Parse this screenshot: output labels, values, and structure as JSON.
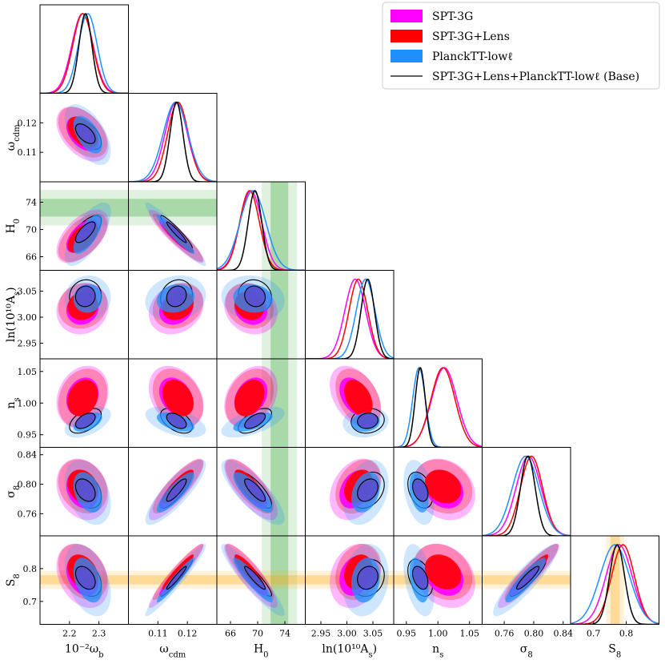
{
  "chart_data": {
    "type": "scatter",
    "title": "",
    "legend": {
      "placement": "top-right",
      "entries": [
        {
          "name": "SPT-3G",
          "color": "#ff00ff",
          "style": "patch"
        },
        {
          "name": "SPT-3G+Lens",
          "color": "#ff0000",
          "style": "patch"
        },
        {
          "name": "PlanckTT-lowℓ",
          "color": "#1e90ff",
          "style": "patch"
        },
        {
          "name": "SPT-3G+Lens+PlanckTT-lowℓ (Base)",
          "color": "#000000",
          "style": "line"
        }
      ]
    },
    "parameters": [
      {
        "key": "ombh2",
        "label": "10⁻²ω_b",
        "ticks": [
          2.2,
          2.3
        ],
        "tick_labels": [
          "2.2",
          "2.3"
        ],
        "range": [
          2.1,
          2.4
        ]
      },
      {
        "key": "omch2",
        "label": "ω_cdm",
        "ticks": [
          0.11,
          0.12
        ],
        "tick_labels": [
          "0.11",
          "0.12"
        ],
        "range": [
          0.1,
          0.13
        ]
      },
      {
        "key": "H0",
        "label": "H_0",
        "ticks": [
          66,
          70,
          74
        ],
        "tick_labels": [
          "66",
          "70",
          "74"
        ],
        "range": [
          64,
          77
        ]
      },
      {
        "key": "logA",
        "label": "ln(10¹⁰A_s)",
        "ticks": [
          2.95,
          3.0,
          3.05
        ],
        "tick_labels": [
          "2.95",
          "3.00",
          "3.05"
        ],
        "range": [
          2.92,
          3.09
        ]
      },
      {
        "key": "ns",
        "label": "n_s",
        "ticks": [
          0.95,
          1.0,
          1.05
        ],
        "tick_labels": [
          "0.95",
          "1.00",
          "1.05"
        ],
        "range": [
          0.93,
          1.07
        ]
      },
      {
        "key": "sigma8",
        "label": "σ_8",
        "ticks": [
          0.76,
          0.8,
          0.84
        ],
        "tick_labels": [
          "0.76",
          "0.80",
          "0.84"
        ],
        "range": [
          0.73,
          0.85
        ]
      },
      {
        "key": "S8",
        "label": "S_8",
        "ticks": [
          0.7,
          0.8
        ],
        "tick_labels": [
          "0.7",
          "0.8"
        ],
        "range": [
          0.63,
          0.9
        ]
      }
    ],
    "series": [
      {
        "name": "SPT-3G",
        "color": "#ff00ff",
        "mean": [
          2.244,
          0.1162,
          69.0,
          3.016,
          1.01,
          0.793,
          0.778
        ],
        "sigma": [
          0.036,
          0.0038,
          1.6,
          0.02,
          0.02,
          0.017,
          0.04
        ],
        "corr": {
          "0-1": -0.45,
          "0-2": 0.55,
          "1-2": -0.92,
          "0-3": 0.1,
          "1-3": 0.2,
          "2-3": -0.15,
          "0-4": 0.2,
          "1-4": -0.3,
          "2-4": 0.3,
          "3-4": -0.4,
          "0-5": -0.2,
          "1-5": 0.85,
          "2-5": -0.75,
          "3-5": 0.3,
          "4-5": -0.2,
          "0-6": -0.3,
          "1-6": 0.95,
          "2-6": -0.88,
          "3-6": 0.2,
          "4-6": -0.25,
          "5-6": 0.92
        }
      },
      {
        "name": "SPT-3G+Lens",
        "color": "#ff0000",
        "mean": [
          2.245,
          0.1168,
          68.8,
          3.022,
          1.008,
          0.797,
          0.79
        ],
        "sigma": [
          0.034,
          0.0035,
          1.45,
          0.018,
          0.019,
          0.015,
          0.035
        ],
        "corr": {
          "0-1": -0.45,
          "0-2": 0.55,
          "1-2": -0.92,
          "0-3": 0.1,
          "1-3": 0.2,
          "2-3": -0.15,
          "0-4": 0.2,
          "1-4": -0.3,
          "2-4": 0.3,
          "3-4": -0.4,
          "0-5": -0.2,
          "1-5": 0.85,
          "2-5": -0.75,
          "3-5": 0.3,
          "4-5": -0.2,
          "0-6": -0.3,
          "1-6": 0.95,
          "2-6": -0.88,
          "3-6": 0.2,
          "4-6": -0.25,
          "5-6": 0.92
        }
      },
      {
        "name": "PlanckTT-lowℓ",
        "color": "#1e90ff",
        "mean": [
          2.262,
          0.116,
          69.3,
          3.036,
          0.97,
          0.789,
          0.765
        ],
        "sigma": [
          0.032,
          0.0042,
          1.9,
          0.018,
          0.01,
          0.018,
          0.045
        ],
        "corr": {
          "0-1": -0.55,
          "0-2": 0.7,
          "1-2": -0.95,
          "0-3": 0.05,
          "1-3": 0.15,
          "2-3": -0.1,
          "0-4": 0.5,
          "1-4": -0.5,
          "2-4": 0.6,
          "3-4": 0.1,
          "0-5": -0.35,
          "1-5": 0.85,
          "2-5": -0.8,
          "3-5": 0.3,
          "4-5": -0.35,
          "0-6": -0.4,
          "1-6": 0.96,
          "2-6": -0.92,
          "3-6": 0.15,
          "4-6": -0.4,
          "5-6": 0.9
        }
      },
      {
        "name": "SPT-3G+Lens+PlanckTT-lowℓ (Base)",
        "color": "#000000",
        "mean": [
          2.254,
          0.1163,
          69.6,
          3.04,
          0.972,
          0.792,
          0.772
        ],
        "sigma": [
          0.022,
          0.0022,
          1.0,
          0.013,
          0.008,
          0.01,
          0.023
        ],
        "corr": {
          "0-1": -0.55,
          "0-2": 0.7,
          "1-2": -0.95,
          "0-3": 0.05,
          "1-3": 0.15,
          "2-3": -0.1,
          "0-4": 0.5,
          "1-4": -0.5,
          "2-4": 0.6,
          "3-4": 0.1,
          "0-5": -0.35,
          "1-5": 0.85,
          "2-5": -0.8,
          "3-5": 0.3,
          "4-5": -0.35,
          "0-6": -0.4,
          "1-6": 0.96,
          "2-6": -0.92,
          "3-6": 0.15,
          "4-6": -0.4,
          "5-6": 0.9
        }
      }
    ],
    "external_priors": [
      {
        "param": "H0",
        "center": 73.2,
        "sigma": 1.3,
        "color": "#2ca02c"
      },
      {
        "param": "S8",
        "center": 0.766,
        "sigma": 0.014,
        "color": "#ffa500"
      }
    ]
  }
}
